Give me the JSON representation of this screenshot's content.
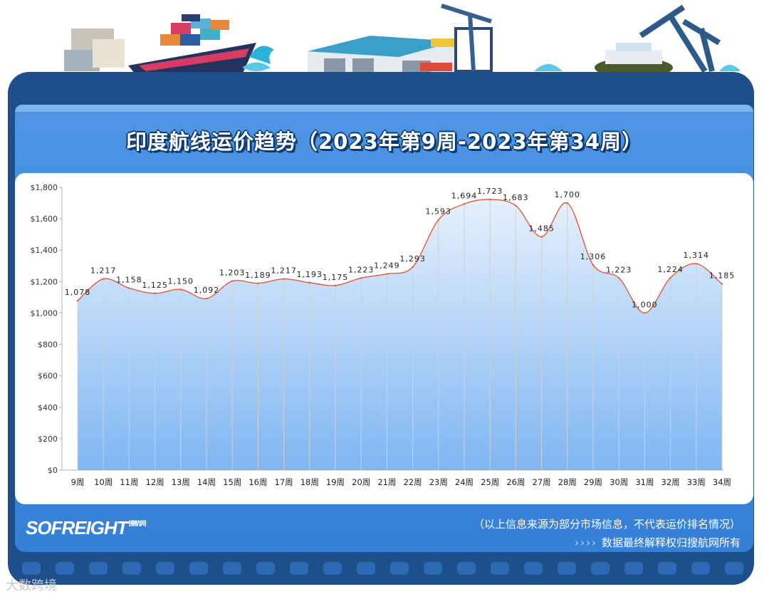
{
  "title": "印度航线运价趋势（2023年第9周-2023年第34周）",
  "logo": {
    "text": "SOFREIGHT",
    "sub": "搜航网"
  },
  "footer": {
    "disclaimer": "（以上信息来源为部分市场信息，不代表运价排名情况）",
    "arrows": "››››",
    "copyright": "数据最终解释权归搜航网所有"
  },
  "source_mark": "大数跨境",
  "colors": {
    "frame": "#1d4f8a",
    "panel": "#3b85dc",
    "line": "#e25a3c",
    "area_top": "#e6f1fc",
    "area_bottom": "#7fb6f2",
    "grid": "#d0d0d0"
  },
  "chart_data": {
    "type": "area",
    "title": "",
    "xlabel": "",
    "ylabel": "",
    "categories": [
      "9周",
      "10周",
      "11周",
      "12周",
      "13周",
      "14周",
      "15周",
      "16周",
      "17周",
      "18周",
      "19周",
      "20周",
      "21周",
      "22周",
      "23周",
      "24周",
      "25周",
      "26周",
      "27周",
      "28周",
      "29周",
      "30周",
      "31周",
      "32周",
      "33周",
      "34周"
    ],
    "values": [
      1078,
      1217,
      1158,
      1125,
      1150,
      1092,
      1203,
      1189,
      1217,
      1193,
      1175,
      1223,
      1249,
      1293,
      1593,
      1694,
      1723,
      1683,
      1485,
      1700,
      1306,
      1223,
      1000,
      1224,
      1314,
      1185
    ],
    "value_labels": [
      "1,078",
      "1,217",
      "1,158",
      "1,125",
      "1,150",
      "1,092",
      "1,203",
      "1,189",
      "1,217",
      "1,193",
      "1,175",
      "1,223",
      "1,249",
      "1,293",
      "1,593",
      "1,694",
      "1,723",
      "1,683",
      "1,485",
      "1,700",
      "1,306",
      "1,223",
      "1,000",
      "1,224",
      "1,314",
      "1,185"
    ],
    "ylim": [
      0,
      1800
    ],
    "yticks": [
      0,
      200,
      400,
      600,
      800,
      1000,
      1200,
      1400,
      1600,
      1800
    ],
    "ytick_labels": [
      "$0",
      "$200",
      "$400",
      "$600",
      "$800",
      "$1,000",
      "$1,200",
      "$1,400",
      "$1,600",
      "$1,800"
    ],
    "grid": "vertical",
    "legend": "none"
  }
}
